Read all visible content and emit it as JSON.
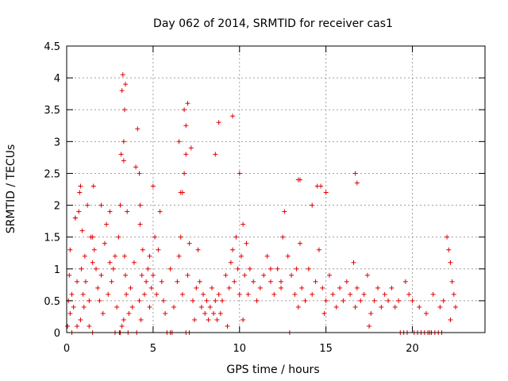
{
  "chart_data": {
    "type": "scatter",
    "title": "Day 062 of 2014, SRMTID for receiver cas1",
    "xlabel": "GPS time / hours",
    "ylabel": "SRMTID / TECUs",
    "xlim": [
      0,
      24.2
    ],
    "ylim": [
      0,
      4.5
    ],
    "xticks": [
      0,
      5,
      10,
      15,
      20
    ],
    "yticks": [
      0,
      0.5,
      1,
      1.5,
      2,
      2.5,
      3,
      3.5,
      4,
      4.5
    ],
    "grid": true,
    "marker": "+",
    "series": [
      {
        "name": "SRMTID",
        "color": "#e00000",
        "x": [
          0.1,
          0.15,
          0.2,
          0.3,
          0.4,
          0.5,
          0.6,
          0.7,
          0.75,
          0.8,
          0.85,
          0.9,
          0.95,
          1.0,
          1.05,
          1.1,
          1.2,
          1.3,
          1.4,
          1.5,
          1.55,
          1.6,
          1.7,
          1.8,
          1.9,
          2.0,
          2.1,
          2.2,
          2.3,
          2.4,
          2.5,
          2.6,
          2.7,
          2.8,
          2.9,
          3.0,
          3.1,
          3.15,
          3.2,
          3.25,
          3.3,
          3.35,
          3.4,
          3.45,
          3.5,
          3.6,
          3.7,
          3.8,
          3.9,
          4.0,
          4.1,
          4.2,
          4.25,
          4.3,
          4.35,
          4.4,
          4.5,
          4.6,
          4.7,
          4.8,
          4.9,
          5.0,
          5.1,
          5.2,
          5.3,
          5.4,
          5.5,
          5.6,
          5.7,
          6.0,
          6.2,
          6.4,
          6.5,
          6.6,
          6.7,
          6.8,
          6.9,
          7.0,
          7.1,
          7.3,
          7.5,
          7.6,
          7.7,
          7.8,
          7.9,
          8.0,
          8.1,
          8.2,
          8.3,
          8.4,
          8.5,
          8.6,
          8.7,
          8.8,
          8.9,
          9.0,
          9.2,
          9.4,
          9.5,
          9.6,
          9.7,
          9.8,
          9.9,
          10.0,
          10.1,
          10.2,
          10.3,
          10.4,
          10.5,
          10.6,
          10.8,
          11.0,
          11.2,
          11.4,
          11.6,
          11.8,
          12.0,
          12.2,
          12.4,
          12.5,
          12.6,
          12.8,
          13.0,
          13.2,
          13.3,
          13.4,
          13.5,
          13.6,
          13.8,
          14.0,
          14.2,
          14.4,
          14.6,
          14.7,
          14.8,
          15.0,
          15.2,
          15.4,
          15.6,
          15.8,
          16.0,
          16.2,
          16.4,
          16.6,
          16.7,
          16.8,
          17.0,
          17.2,
          17.4,
          17.6,
          17.8,
          18.0,
          18.2,
          18.4,
          18.6,
          18.8,
          19.0,
          19.2,
          19.6,
          19.8,
          20.0,
          20.4,
          20.8,
          21.2,
          21.6,
          21.8,
          22.0,
          22.1,
          22.2,
          22.3,
          22.4,
          22.5,
          0.2,
          0.8,
          1.3,
          3.1,
          3.2,
          3.3,
          3.3,
          3.35,
          3.4,
          4.2,
          4.25,
          6.5,
          6.6,
          6.7,
          6.8,
          6.9,
          7.0,
          7.2,
          8.6,
          8.8,
          10.0,
          10.2,
          13.4,
          13.5,
          14.2,
          14.5,
          15.0,
          16.7,
          16.8,
          1.5,
          2.0,
          5.0,
          9.6,
          11.8,
          12.4,
          0.5,
          2.5,
          4.8,
          7.4,
          9.3,
          12.9,
          14.9,
          17.5,
          21.0,
          22.2,
          0.05,
          0.3,
          0.6,
          1.5,
          2.8,
          3.05,
          3.55,
          4.05,
          5.8,
          6.0,
          6.1,
          6.9,
          7.1,
          19.3,
          19.5,
          19.7,
          20.1,
          20.3,
          20.5,
          20.7,
          20.9,
          21.1,
          21.3,
          21.5,
          21.7
        ],
        "y": [
          0.5,
          0.9,
          1.3,
          0.6,
          0.4,
          1.8,
          0.8,
          1.9,
          2.2,
          2.3,
          1.0,
          1.6,
          0.6,
          0.4,
          1.2,
          0.8,
          2.0,
          0.5,
          1.5,
          1.1,
          2.3,
          1.3,
          1.0,
          0.7,
          0.5,
          0.9,
          0.3,
          1.4,
          1.7,
          0.6,
          1.1,
          0.8,
          1.0,
          1.2,
          0.4,
          1.5,
          2.0,
          2.8,
          3.8,
          4.05,
          2.7,
          1.2,
          0.9,
          0.6,
          1.9,
          0.3,
          0.7,
          0.4,
          1.1,
          2.6,
          3.2,
          0.5,
          1.7,
          0.2,
          0.9,
          1.3,
          0.6,
          0.8,
          1.0,
          0.4,
          0.7,
          0.9,
          1.5,
          0.6,
          1.3,
          1.9,
          0.8,
          0.5,
          0.3,
          1.0,
          0.4,
          0.8,
          1.2,
          1.5,
          0.6,
          3.5,
          2.8,
          0.9,
          1.4,
          0.5,
          0.7,
          1.3,
          0.8,
          0.4,
          0.6,
          0.3,
          0.5,
          0.2,
          0.4,
          0.7,
          0.3,
          0.5,
          0.2,
          0.6,
          0.3,
          0.5,
          0.9,
          0.7,
          1.1,
          1.3,
          0.8,
          1.5,
          1.0,
          0.6,
          1.2,
          1.7,
          0.9,
          1.4,
          0.6,
          1.0,
          0.8,
          0.5,
          0.7,
          0.9,
          1.2,
          0.8,
          0.6,
          1.0,
          0.8,
          1.5,
          1.9,
          1.2,
          0.9,
          0.6,
          1.0,
          2.4,
          1.4,
          0.7,
          0.5,
          1.0,
          0.6,
          0.8,
          1.3,
          2.3,
          0.7,
          0.5,
          0.9,
          0.6,
          0.4,
          0.7,
          0.5,
          0.8,
          0.6,
          1.1,
          0.4,
          0.7,
          0.5,
          0.6,
          0.9,
          0.3,
          0.5,
          0.7,
          0.4,
          0.6,
          0.5,
          0.7,
          0.4,
          0.5,
          0.8,
          0.6,
          0.5,
          0.4,
          0.3,
          0.6,
          0.4,
          0.5,
          1.5,
          1.3,
          1.1,
          0.8,
          0.6,
          0.4,
          0.3,
          0.2,
          0.1,
          0.0,
          0.1,
          0.2,
          3.0,
          3.5,
          3.9,
          2.5,
          2.0,
          3.0,
          2.2,
          2.2,
          2.5,
          3.25,
          3.6,
          2.9,
          2.8,
          3.3,
          2.5,
          0.2,
          0.4,
          2.4,
          2.0,
          2.3,
          2.2,
          2.5,
          2.35,
          1.5,
          2.0,
          2.3,
          3.4,
          1.0,
          0.7,
          1.8,
          1.9,
          1.2,
          0.2,
          0.1,
          0.0,
          0.3,
          0.1,
          0.0,
          0.2,
          0.1,
          0.0,
          0.1,
          0.0,
          0.0,
          0.0,
          0.0,
          0.0,
          0.0,
          0.0,
          0.0,
          0.0,
          0.0,
          0.0,
          0.0,
          0.0,
          0.0,
          0.0,
          0.0,
          0.0,
          0.0,
          0.0,
          0.0,
          0.0,
          0.0
        ]
      }
    ]
  }
}
